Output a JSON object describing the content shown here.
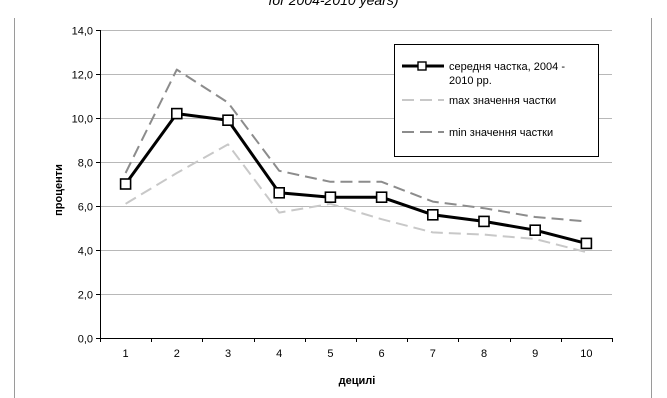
{
  "caption": "for 2004-2010 years)",
  "chart_data": {
    "type": "line",
    "categories": [
      "1",
      "2",
      "3",
      "4",
      "5",
      "6",
      "7",
      "8",
      "9",
      "10"
    ],
    "ylabel": "проценти",
    "xlabel": "децилі",
    "ylim": [
      0,
      14
    ],
    "y_ticks": [
      "0,0",
      "2,0",
      "4,0",
      "6,0",
      "8,0",
      "10,0",
      "12,0",
      "14,0"
    ],
    "grid": "horizontal",
    "legend_position": "top-right",
    "series": [
      {
        "name": "середня частка, 2004 - 2010 рр.",
        "legend_lines": [
          "середня частка, 2004 -",
          "2010 рр."
        ],
        "style": "solid-black-square-markers",
        "color": "#000000",
        "values": [
          7.0,
          10.2,
          9.9,
          6.6,
          6.4,
          6.4,
          5.6,
          5.3,
          4.9,
          4.3
        ]
      },
      {
        "name": "max значення частки",
        "legend_lines": [
          "max значення частки"
        ],
        "style": "dashed-light",
        "color": "#c8c8c8",
        "values": [
          6.1,
          7.5,
          8.8,
          5.7,
          6.1,
          5.4,
          4.8,
          4.7,
          4.5,
          3.9
        ]
      },
      {
        "name": "min значення частки",
        "legend_lines": [
          "min значення частки"
        ],
        "style": "dashed-dark",
        "color": "#8c8c8c",
        "values": [
          7.5,
          12.2,
          10.7,
          7.6,
          7.1,
          7.1,
          6.2,
          5.9,
          5.5,
          5.3
        ]
      }
    ]
  }
}
